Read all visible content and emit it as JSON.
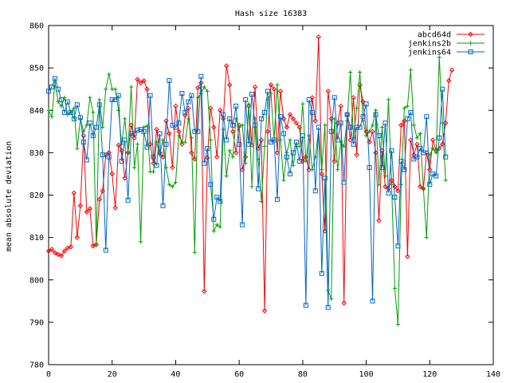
{
  "chart_data": {
    "type": "line",
    "title": "Hash size 16383",
    "xlabel": "",
    "ylabel": "mean absolute deviation",
    "xlim": [
      0,
      140
    ],
    "ylim": [
      780,
      860
    ],
    "xticks": [
      0,
      20,
      40,
      60,
      80,
      100,
      120,
      140
    ],
    "yticks": [
      780,
      790,
      800,
      810,
      820,
      830,
      840,
      850,
      860
    ],
    "grid": false,
    "legend_position": "top-right",
    "series": [
      {
        "name": "abcd64d",
        "color": "#ff0000",
        "marker": "diamond",
        "values": [
          806.8,
          807.2,
          806.4,
          806,
          805.7,
          806.8,
          807.5,
          807.8,
          820.5,
          810,
          817.5,
          834,
          816,
          816.8,
          808,
          808.3,
          819,
          821,
          829.5,
          830,
          825,
          817,
          831.8,
          830.5,
          824,
          830,
          836.5,
          833.5,
          847.3,
          846.5,
          847,
          845,
          832,
          827.5,
          835.5,
          830,
          829,
          837.5,
          834.5,
          826.5,
          841,
          835,
          832,
          838.8,
          840.5,
          830,
          828.5,
          845.3,
          846.5,
          797.3,
          828.8,
          840.5,
          836,
          829,
          840,
          838,
          850.5,
          846,
          835,
          830,
          836.5,
          826,
          829,
          841,
          831.8,
          845.5,
          831,
          833,
          792.7,
          835,
          846,
          845,
          830,
          844.5,
          838,
          836,
          839,
          838,
          837,
          836,
          828,
          829,
          826,
          843,
          837.5,
          857.3,
          825,
          811.5,
          844.5,
          838,
          828,
          837,
          841,
          794.5,
          839,
          833,
          843,
          829.5,
          846,
          842,
          835,
          832.5,
          835,
          830,
          814,
          830.5,
          822,
          821.5,
          823.5,
          822,
          821,
          836.5,
          837.5,
          805.5,
          833,
          829.5,
          832,
          822,
          821.5,
          830,
          826,
          833,
          830.5,
          831,
          832,
          837,
          847,
          849.5
        ]
      },
      {
        "name": "jenkins2b",
        "color": "#00a000",
        "marker": "plus",
        "values": [
          840,
          838.5,
          846.5,
          842,
          841,
          843,
          839,
          839.5,
          840.5,
          831,
          838,
          835,
          836.5,
          843,
          839.5,
          808.5,
          842.5,
          836,
          845,
          848.5,
          845,
          845,
          840,
          832,
          838,
          830,
          845.5,
          826.5,
          832,
          809,
          836,
          836.3,
          825.5,
          825.5,
          832.5,
          829.5,
          833,
          826.5,
          822.5,
          822,
          823,
          834,
          832.5,
          832.5,
          838,
          833.5,
          806.5,
          843,
          844,
          845.5,
          844.5,
          833,
          811.5,
          813,
          812.5,
          835.5,
          824.5,
          830.5,
          829,
          838,
          836,
          836.5,
          827.5,
          841.5,
          822,
          838,
          828.5,
          818.5,
          831.5,
          842.5,
          844,
          833,
          846,
          833,
          823.5,
          830,
          833,
          827,
          831.5,
          831.5,
          841.5,
          828,
          834,
          826,
          829,
          835.5,
          826,
          836.5,
          797.5,
          795.5,
          838,
          826,
          832.5,
          831.5,
          837.5,
          849,
          833.5,
          840.5,
          849,
          837.5,
          834,
          835,
          836.5,
          840,
          822.5,
          836,
          824.5,
          842.5,
          822.5,
          798,
          789.5,
          822.5,
          840.5,
          841,
          849.5,
          836.5,
          833.5,
          834.5,
          821.5,
          810,
          829.5,
          831,
          830,
          852.5,
          837,
          823.5
        ]
      },
      {
        "name": "jenkins64",
        "color": "#0066cc",
        "marker": "square",
        "values": [
          844.5,
          845.5,
          847.5,
          845,
          842.5,
          839.5,
          842,
          839.5,
          838,
          841.3,
          838.3,
          832.5,
          828.3,
          837,
          834,
          836,
          841.3,
          829.5,
          807,
          829,
          842.5,
          842.5,
          843.5,
          828,
          833,
          818.8,
          834.5,
          834.5,
          835.3,
          835.5,
          835,
          831.3,
          843.5,
          829,
          827,
          834.5,
          817.5,
          832,
          847,
          836.5,
          836,
          837,
          844,
          839.5,
          842,
          843.5,
          835,
          835,
          848,
          827.5,
          831,
          822.5,
          814.3,
          819.5,
          818.5,
          839,
          833,
          838,
          836.5,
          841,
          832,
          813,
          842.5,
          832,
          843.8,
          836.5,
          821.5,
          838,
          839.5,
          844.5,
          832.5,
          833,
          819,
          838.5,
          834.5,
          829,
          825,
          830,
          832.5,
          828,
          834,
          794,
          842.5,
          839.5,
          821,
          836,
          801.5,
          824,
          793.5,
          835,
          843,
          833,
          837,
          823,
          839,
          836,
          832,
          836,
          836,
          838.5,
          841.5,
          826.5,
          795,
          839,
          834,
          826.5,
          837,
          820.5,
          830.5,
          819.5,
          808,
          828,
          826,
          838,
          839.5,
          828.5,
          829,
          831,
          830,
          838.5,
          822.5,
          825,
          824.5,
          833.5,
          845,
          829
        ]
      }
    ]
  }
}
